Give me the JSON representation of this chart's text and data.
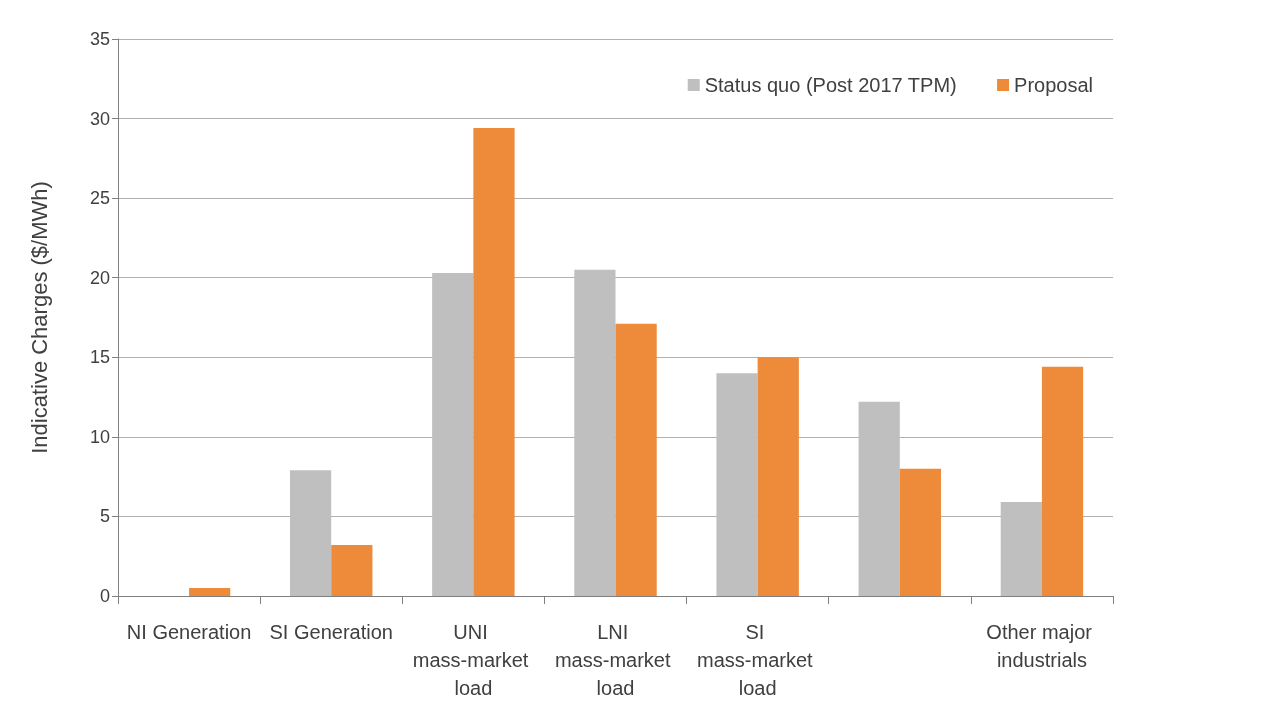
{
  "chart_data": {
    "type": "bar",
    "ylabel": "Indicative Charges ($/MWh)",
    "categories": [
      "NI Generation",
      "SI Generation",
      "UNI mass-market load",
      "LNI mass-market load",
      "SI mass-market load",
      null,
      "Other major industrials"
    ],
    "series": [
      {
        "name": "Status quo (Post 2017 TPM)",
        "color": "#bfbfbf",
        "values": [
          0,
          7.9,
          20.3,
          20.5,
          14.0,
          12.2,
          5.9
        ]
      },
      {
        "name": "Proposal",
        "color": "#ed8b3a",
        "values": [
          0.5,
          3.2,
          29.4,
          17.1,
          15.0,
          8.0,
          14.4
        ]
      }
    ],
    "ylim": [
      0,
      35
    ],
    "yticks": [
      0,
      5,
      10,
      15,
      20,
      25,
      30,
      35
    ],
    "grid": "y",
    "legend": "top right"
  }
}
